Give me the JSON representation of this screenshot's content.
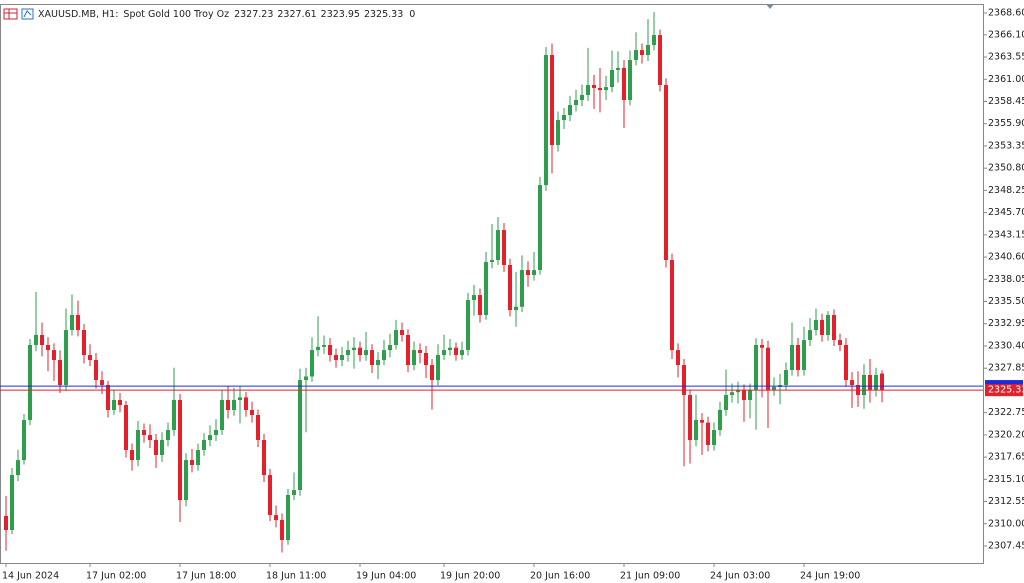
{
  "chart_data": {
    "type": "candlestick",
    "symbol": "XAUUSD.MB, H1:",
    "description": "Spot Gold 100 Troy Oz",
    "header_ohlc": [
      2327.23,
      2327.61,
      2323.95,
      2325.33
    ],
    "header_volume": 0,
    "up_color": "#2e9d4c",
    "down_color": "#e3212b",
    "bid": 2325.33,
    "bid_color": "#e3212b",
    "ask": 2325.8,
    "ask_color": "#1f2bd6",
    "ylim": [
      2305.5,
      2369.52
    ],
    "yticks": [
      2307.45,
      {
        "value": 2310,
        "label": "2310.00"
      },
      2312.55,
      {
        "value": 2315.1,
        "label": "2315.10"
      },
      2317.65,
      {
        "value": 2320.2,
        "label": "2320.20"
      },
      2322.75,
      2327.85,
      {
        "value": 2330.4,
        "label": "2330.40"
      },
      2332.95,
      {
        "value": 2335.5,
        "label": "2335.50"
      },
      2338.05,
      {
        "value": 2340.6,
        "label": "2340.60"
      },
      2343.15,
      {
        "value": 2345.7,
        "label": "2345.70"
      },
      2348.25,
      {
        "value": 2350.8,
        "label": "2350.80"
      },
      2353.35,
      {
        "value": 2355.9,
        "label": "2355.90"
      },
      2358.45,
      {
        "value": 2361,
        "label": "2361.00"
      },
      2363.55,
      {
        "value": 2366.1,
        "label": "2366.10"
      },
      {
        "value": 2368.6,
        "label": "2368.60"
      }
    ],
    "categories": [
      "14 Jun 2024",
      null,
      null,
      null,
      null,
      null,
      null,
      null,
      null,
      null,
      null,
      null,
      null,
      null,
      "17 Jun 02:00",
      null,
      null,
      null,
      null,
      null,
      null,
      null,
      null,
      null,
      null,
      null,
      null,
      null,
      null,
      "17 Jun 18:00",
      null,
      null,
      null,
      null,
      null,
      null,
      null,
      null,
      null,
      null,
      null,
      null,
      null,
      null,
      "18 Jun 11:00",
      null,
      null,
      null,
      null,
      null,
      null,
      null,
      null,
      null,
      null,
      null,
      null,
      null,
      null,
      "19 Jun 04:00",
      null,
      null,
      null,
      null,
      null,
      null,
      null,
      null,
      null,
      null,
      null,
      null,
      null,
      "19 Jun 20:00",
      null,
      null,
      null,
      null,
      null,
      null,
      null,
      null,
      null,
      null,
      null,
      null,
      null,
      null,
      "20 Jun 16:00",
      null,
      null,
      null,
      null,
      null,
      null,
      null,
      null,
      null,
      null,
      null,
      null,
      null,
      null,
      "21 Jun 09:00",
      null,
      null,
      null,
      null,
      null,
      null,
      null,
      null,
      null,
      null,
      null,
      null,
      null,
      null,
      "24 Jun 03:00",
      null,
      null,
      null,
      null,
      null,
      null,
      null,
      null,
      null,
      null,
      null,
      null,
      null,
      null,
      "24 Jun 19:00",
      null,
      null,
      null,
      null,
      null,
      null,
      null,
      null,
      null,
      null,
      null,
      null,
      null
    ],
    "ohlc": [
      [
        2310.9,
        2313.2,
        2306.9,
        2309.28
      ],
      [
        2309.28,
        2316.4,
        2308.8,
        2315.59
      ],
      [
        2315.59,
        2318.5,
        2314.9,
        2317.31
      ],
      [
        2317.31,
        2322.6,
        2316.8,
        2321.9
      ],
      [
        2321.9,
        2331.2,
        2321.3,
        2330.51
      ],
      [
        2330.51,
        2336.6,
        2329.8,
        2331.66
      ],
      [
        2331.66,
        2333.1,
        2329.2,
        2330.51
      ],
      [
        2330.51,
        2331.4,
        2327.5,
        2329.93
      ],
      [
        2329.93,
        2330.7,
        2326.4,
        2328.79
      ],
      [
        2328.79,
        2329.9,
        2325.0,
        2325.92
      ],
      [
        2325.92,
        2334.7,
        2325.2,
        2332.23
      ],
      [
        2332.23,
        2336.3,
        2331.6,
        2333.95
      ],
      [
        2333.95,
        2335.6,
        2331.5,
        2332.23
      ],
      [
        2332.23,
        2332.9,
        2328.4,
        2329.36
      ],
      [
        2329.36,
        2330.6,
        2328.1,
        2328.79
      ],
      [
        2328.79,
        2329.6,
        2325.5,
        2326.49
      ],
      [
        2326.49,
        2327.5,
        2324.9,
        2325.92
      ],
      [
        2325.92,
        2326.4,
        2322.2,
        2323.05
      ],
      [
        2323.05,
        2325.4,
        2322.5,
        2324.2
      ],
      [
        2324.2,
        2325.0,
        2322.8,
        2323.62
      ],
      [
        2323.62,
        2324.1,
        2317.6,
        2318.46
      ],
      [
        2318.46,
        2319.2,
        2316.1,
        2317.31
      ],
      [
        2317.31,
        2321.8,
        2316.6,
        2320.76
      ],
      [
        2320.76,
        2321.5,
        2319.3,
        2320.18
      ],
      [
        2320.18,
        2321.4,
        2318.7,
        2319.61
      ],
      [
        2319.61,
        2320.3,
        2316.4,
        2317.89
      ],
      [
        2317.89,
        2320.5,
        2317.1,
        2319.61
      ],
      [
        2319.61,
        2321.6,
        2318.9,
        2320.76
      ],
      [
        2320.76,
        2327.9,
        2320.1,
        2324.2
      ],
      [
        2324.2,
        2324.9,
        2310.2,
        2312.72
      ],
      [
        2312.72,
        2318.1,
        2312.0,
        2317.31
      ],
      [
        2317.31,
        2318.6,
        2315.9,
        2316.74
      ],
      [
        2316.74,
        2319.2,
        2316.1,
        2318.46
      ],
      [
        2318.46,
        2320.4,
        2317.8,
        2319.61
      ],
      [
        2319.61,
        2321.3,
        2318.9,
        2320.18
      ],
      [
        2320.18,
        2322.0,
        2319.5,
        2320.76
      ],
      [
        2320.76,
        2325.3,
        2320.2,
        2324.2
      ],
      [
        2324.2,
        2325.8,
        2322.1,
        2323.05
      ],
      [
        2323.05,
        2325.6,
        2322.4,
        2324.2
      ],
      [
        2324.2,
        2325.8,
        2321.5,
        2324.5
      ],
      [
        2324.5,
        2325.1,
        2322.3,
        2323.05
      ],
      [
        2323.05,
        2324.0,
        2321.6,
        2322.48
      ],
      [
        2322.48,
        2323.1,
        2318.8,
        2319.61
      ],
      [
        2319.61,
        2320.3,
        2314.8,
        2315.59
      ],
      [
        2315.59,
        2316.3,
        2310.3,
        2311.0
      ],
      [
        2311.0,
        2312.1,
        2309.6,
        2310.43
      ],
      [
        2310.43,
        2311.2,
        2306.7,
        2308.14
      ],
      [
        2308.14,
        2314.0,
        2307.6,
        2313.3
      ],
      [
        2313.3,
        2315.9,
        2312.7,
        2313.87
      ],
      [
        2313.87,
        2327.8,
        2313.2,
        2326.49
      ],
      [
        2326.49,
        2327.9,
        2320.5,
        2326.9
      ],
      [
        2326.9,
        2331.4,
        2326.3,
        2329.93
      ],
      [
        2329.93,
        2333.8,
        2329.2,
        2330.3
      ],
      [
        2330.3,
        2331.6,
        2329.5,
        2330.51
      ],
      [
        2330.51,
        2331.3,
        2328.6,
        2329.36
      ],
      [
        2329.36,
        2330.1,
        2327.9,
        2328.79
      ],
      [
        2328.79,
        2330.3,
        2328.1,
        2329.36
      ],
      [
        2329.36,
        2331.0,
        2328.6,
        2329.93
      ],
      [
        2329.93,
        2331.4,
        2327.8,
        2330.2
      ],
      [
        2330.2,
        2330.9,
        2328.6,
        2329.36
      ],
      [
        2329.36,
        2332.0,
        2328.7,
        2329.93
      ],
      [
        2329.93,
        2330.6,
        2327.3,
        2328.21
      ],
      [
        2328.21,
        2329.7,
        2326.6,
        2328.79
      ],
      [
        2328.79,
        2331.1,
        2328.2,
        2329.93
      ],
      [
        2329.93,
        2331.8,
        2329.1,
        2330.51
      ],
      [
        2330.51,
        2333.4,
        2330.0,
        2332.23
      ],
      [
        2332.23,
        2333.1,
        2330.9,
        2331.66
      ],
      [
        2331.66,
        2332.3,
        2327.4,
        2328.21
      ],
      [
        2328.21,
        2330.9,
        2327.6,
        2329.93
      ],
      [
        2329.93,
        2330.7,
        2328.4,
        2329.6
      ],
      [
        2329.6,
        2330.4,
        2326.7,
        2328.21
      ],
      [
        2328.21,
        2328.9,
        2323.1,
        2326.49
      ],
      [
        2326.49,
        2330.6,
        2325.9,
        2329.36
      ],
      [
        2329.36,
        2331.7,
        2328.8,
        2329.93
      ],
      [
        2329.93,
        2331.2,
        2329.3,
        2330.2
      ],
      [
        2330.2,
        2330.8,
        2328.7,
        2329.36
      ],
      [
        2329.36,
        2330.9,
        2328.8,
        2329.93
      ],
      [
        2329.93,
        2336.5,
        2329.3,
        2335.67
      ],
      [
        2335.67,
        2337.4,
        2333.9,
        2336.24
      ],
      [
        2336.24,
        2337.0,
        2333.1,
        2333.95
      ],
      [
        2333.95,
        2341.2,
        2333.4,
        2340.03
      ],
      [
        2340.03,
        2344.4,
        2339.3,
        2340.26
      ],
      [
        2340.26,
        2345.2,
        2339.7,
        2343.7
      ],
      [
        2343.7,
        2344.5,
        2338.9,
        2339.69
      ],
      [
        2339.69,
        2340.4,
        2333.8,
        2334.52
      ],
      [
        2334.52,
        2338.9,
        2332.6,
        2334.9
      ],
      [
        2334.9,
        2340.8,
        2334.3,
        2339.11
      ],
      [
        2339.11,
        2340.1,
        2337.2,
        2338.54
      ],
      [
        2338.54,
        2341.2,
        2337.9,
        2339.11
      ],
      [
        2339.11,
        2349.8,
        2338.6,
        2348.86
      ],
      [
        2348.86,
        2364.7,
        2348.2,
        2363.78
      ],
      [
        2363.78,
        2365.1,
        2350.2,
        2353.45
      ],
      [
        2353.45,
        2357.3,
        2352.7,
        2356.32
      ],
      [
        2356.32,
        2357.7,
        2355.3,
        2356.9
      ],
      [
        2356.9,
        2359.1,
        2356.2,
        2358.04
      ],
      [
        2358.04,
        2359.8,
        2357.3,
        2358.62
      ],
      [
        2358.62,
        2360.4,
        2357.9,
        2359.19
      ],
      [
        2359.19,
        2364.6,
        2358.5,
        2360.34
      ],
      [
        2360.34,
        2361.5,
        2357.6,
        2360.0
      ],
      [
        2360.0,
        2362.3,
        2357.2,
        2359.76
      ],
      [
        2359.76,
        2361.4,
        2358.6,
        2360.1
      ],
      [
        2360.1,
        2364.3,
        2359.5,
        2362.06
      ],
      [
        2362.06,
        2364.2,
        2360.6,
        2362.3
      ],
      [
        2362.3,
        2363.2,
        2355.4,
        2358.62
      ],
      [
        2358.62,
        2364.3,
        2358.0,
        2363.21
      ],
      [
        2363.21,
        2366.4,
        2362.6,
        2364.35
      ],
      [
        2364.35,
        2365.1,
        2362.8,
        2363.78
      ],
      [
        2363.78,
        2367.9,
        2363.1,
        2364.93
      ],
      [
        2364.93,
        2368.7,
        2364.3,
        2366.07
      ],
      [
        2366.07,
        2366.7,
        2359.6,
        2360.34
      ],
      [
        2360.34,
        2361.1,
        2339.4,
        2340.26
      ],
      [
        2340.26,
        2341.0,
        2328.9,
        2329.93
      ],
      [
        2329.93,
        2330.7,
        2326.8,
        2328.21
      ],
      [
        2328.21,
        2328.9,
        2316.6,
        2324.77
      ],
      [
        2324.77,
        2325.4,
        2316.9,
        2319.61
      ],
      [
        2319.61,
        2324.8,
        2318.9,
        2321.9
      ],
      [
        2321.9,
        2322.7,
        2317.9,
        2321.6
      ],
      [
        2321.6,
        2322.3,
        2318.3,
        2319.04
      ],
      [
        2319.04,
        2321.6,
        2318.4,
        2320.76
      ],
      [
        2320.76,
        2324.0,
        2320.1,
        2323.05
      ],
      [
        2323.05,
        2327.7,
        2322.4,
        2324.77
      ],
      [
        2324.77,
        2326.1,
        2323.9,
        2325.1
      ],
      [
        2325.1,
        2326.3,
        2323.8,
        2325.35
      ],
      [
        2325.35,
        2326.0,
        2321.7,
        2324.2
      ],
      [
        2324.2,
        2326.1,
        2322.1,
        2325.35
      ],
      [
        2325.35,
        2331.3,
        2320.8,
        2330.51
      ],
      [
        2330.51,
        2331.2,
        2324.5,
        2330.2
      ],
      [
        2330.2,
        2331.0,
        2321.0,
        2325.35
      ],
      [
        2325.35,
        2326.8,
        2324.7,
        2325.7
      ],
      [
        2325.7,
        2327.2,
        2323.7,
        2325.92
      ],
      [
        2325.92,
        2328.5,
        2325.3,
        2327.64
      ],
      [
        2327.64,
        2333.1,
        2327.0,
        2330.51
      ],
      [
        2330.51,
        2331.3,
        2326.9,
        2327.64
      ],
      [
        2327.64,
        2332.6,
        2327.0,
        2331.08
      ],
      [
        2331.08,
        2333.6,
        2330.4,
        2332.23
      ],
      [
        2332.23,
        2334.7,
        2331.6,
        2333.38
      ],
      [
        2333.38,
        2334.1,
        2330.9,
        2331.66
      ],
      [
        2331.66,
        2334.4,
        2331.0,
        2333.95
      ],
      [
        2333.95,
        2334.6,
        2330.4,
        2331.08
      ],
      [
        2331.08,
        2331.8,
        2329.8,
        2330.51
      ],
      [
        2330.51,
        2331.3,
        2325.7,
        2326.49
      ],
      [
        2326.49,
        2327.4,
        2323.3,
        2325.92
      ],
      [
        2325.92,
        2327.5,
        2323.4,
        2324.77
      ],
      [
        2324.77,
        2328.3,
        2323.2,
        2327.07
      ],
      [
        2327.07,
        2328.9,
        2323.9,
        2325.35
      ],
      [
        2325.35,
        2327.9,
        2324.6,
        2327.07
      ],
      [
        2327.23,
        2327.61,
        2323.95,
        2325.33
      ]
    ]
  }
}
